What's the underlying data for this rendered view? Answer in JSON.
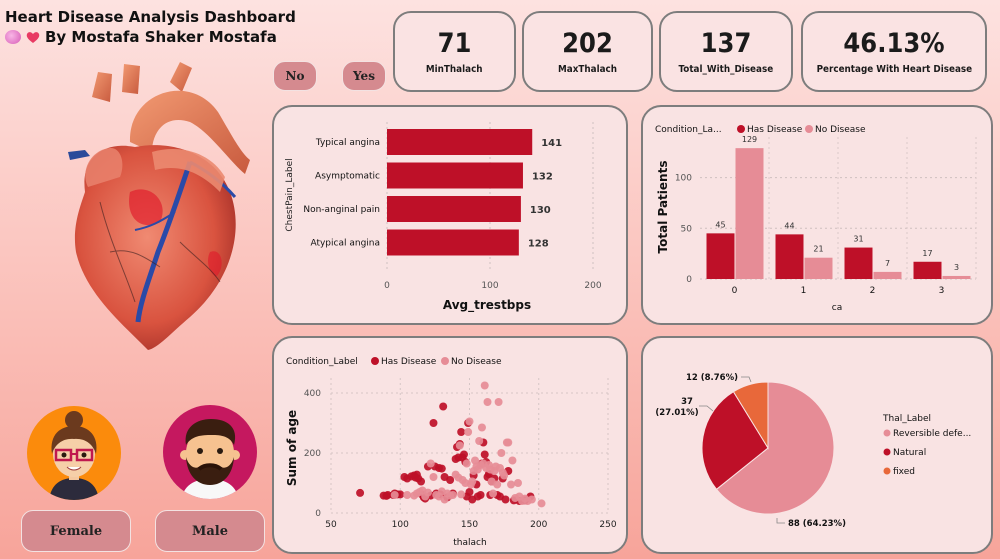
{
  "header": {
    "title": "Heart Disease Analysis Dashboard",
    "subtitle": "By Mostafa Shaker Mostafa",
    "icons": [
      "brain-emoji",
      "heart-emoji"
    ]
  },
  "filters": {
    "condition": {
      "no_label": "No",
      "yes_label": "Yes"
    },
    "sex": {
      "female_label": "Female",
      "male_label": "Male"
    }
  },
  "kpis": [
    {
      "value": "71",
      "label": "MinThalach"
    },
    {
      "value": "202",
      "label": "MaxThalach"
    },
    {
      "value": "137",
      "label": "Total_With_Disease"
    },
    {
      "value": "46.13%",
      "label": "Percentage With Heart Disease"
    }
  ],
  "colors": {
    "has_disease": "#be1028",
    "no_disease": "#e68c96",
    "fixed": "#e8683a",
    "panel_bg": "#f9e3e3",
    "button": "#d58a8f"
  },
  "chart_data": [
    {
      "id": "avg-trestbps-by-chestpain",
      "type": "bar",
      "orientation": "horizontal",
      "categories": [
        "Typical angina",
        "Asymptomatic",
        "Non-anginal pain",
        "Atypical angina"
      ],
      "values": [
        141,
        132,
        130,
        128
      ],
      "data_labels": [
        "141",
        "132",
        "130",
        "128"
      ],
      "title": "",
      "xlabel": "Avg_trestbps",
      "ylabel": "ChestPain_Label",
      "xlim": [
        0,
        200
      ],
      "xticks": [
        0,
        100,
        200
      ],
      "grid": true
    },
    {
      "id": "patients-by-ca",
      "type": "bar",
      "orientation": "vertical",
      "legend_title": "Condition_La...",
      "legend_position": "top-left",
      "categories": [
        "0",
        "1",
        "2",
        "3"
      ],
      "series": [
        {
          "name": "Has Disease",
          "values": [
            45,
            44,
            31,
            17
          ]
        },
        {
          "name": "No Disease",
          "values": [
            129,
            21,
            7,
            3
          ]
        }
      ],
      "xlabel": "ca",
      "ylabel": "Total Patients",
      "ylim": [
        0,
        140
      ],
      "yticks": [
        0,
        50,
        100
      ],
      "grid": true
    },
    {
      "id": "age-vs-thalach",
      "type": "scatter",
      "legend_title": "Condition_Label",
      "legend_position": "top-left",
      "xlabel": "thalach",
      "ylabel": "Sum of age",
      "xlim": [
        50,
        250
      ],
      "ylim": [
        0,
        450
      ],
      "xticks": [
        50,
        100,
        150,
        200,
        250
      ],
      "yticks": [
        0,
        200,
        400
      ],
      "grid": true,
      "series": [
        {
          "name": "Has Disease",
          "points": [
            [
              71,
              67
            ],
            [
              88,
              58
            ],
            [
              90,
              57
            ],
            [
              91,
              60
            ],
            [
              95,
              60
            ],
            [
              96,
              65
            ],
            [
              98,
              62
            ],
            [
              100,
              62
            ],
            [
              103,
              120
            ],
            [
              105,
              115
            ],
            [
              108,
              122
            ],
            [
              110,
              125
            ],
            [
              111,
              118
            ],
            [
              112,
              128
            ],
            [
              113,
              115
            ],
            [
              115,
              105
            ],
            [
              116,
              60
            ],
            [
              117,
              52
            ],
            [
              118,
              48
            ],
            [
              120,
              155
            ],
            [
              122,
              58
            ],
            [
              124,
              300
            ],
            [
              125,
              155
            ],
            [
              126,
              65
            ],
            [
              128,
              150
            ],
            [
              129,
              62
            ],
            [
              130,
              148
            ],
            [
              131,
              355
            ],
            [
              132,
              120
            ],
            [
              134,
              52
            ],
            [
              136,
              110
            ],
            [
              138,
              65
            ],
            [
              140,
              180
            ],
            [
              141,
              220
            ],
            [
              142,
              185
            ],
            [
              143,
              230
            ],
            [
              144,
              270
            ],
            [
              145,
              185
            ],
            [
              146,
              195
            ],
            [
              147,
              170
            ],
            [
              148,
              55
            ],
            [
              149,
              300
            ],
            [
              150,
              70
            ],
            [
              152,
              45
            ],
            [
              153,
              125
            ],
            [
              155,
              95
            ],
            [
              156,
              55
            ],
            [
              158,
              60
            ],
            [
              159,
              165
            ],
            [
              160,
              235
            ],
            [
              161,
              195
            ],
            [
              162,
              170
            ],
            [
              163,
              120
            ],
            [
              164,
              130
            ],
            [
              165,
              60
            ],
            [
              166,
              105
            ],
            [
              168,
              115
            ],
            [
              170,
              60
            ],
            [
              172,
              55
            ],
            [
              174,
              115
            ],
            [
              176,
              45
            ],
            [
              178,
              140
            ],
            [
              182,
              42
            ],
            [
              186,
              40
            ],
            [
              190,
              42
            ],
            [
              194,
              55
            ]
          ]
        },
        {
          "name": "No Disease",
          "points": [
            [
              96,
              60
            ],
            [
              105,
              60
            ],
            [
              110,
              58
            ],
            [
              112,
              65
            ],
            [
              114,
              70
            ],
            [
              116,
              75
            ],
            [
              118,
              55
            ],
            [
              120,
              68
            ],
            [
              122,
              165
            ],
            [
              124,
              120
            ],
            [
              126,
              60
            ],
            [
              128,
              55
            ],
            [
              130,
              72
            ],
            [
              132,
              45
            ],
            [
              134,
              65
            ],
            [
              136,
              58
            ],
            [
              138,
              60
            ],
            [
              140,
              128
            ],
            [
              142,
              118
            ],
            [
              143,
              225
            ],
            [
              144,
              62
            ],
            [
              145,
              110
            ],
            [
              147,
              100
            ],
            [
              148,
              165
            ],
            [
              149,
              270
            ],
            [
              150,
              305
            ],
            [
              151,
              95
            ],
            [
              152,
              105
            ],
            [
              153,
              140
            ],
            [
              154,
              175
            ],
            [
              155,
              155
            ],
            [
              156,
              145
            ],
            [
              157,
              240
            ],
            [
              158,
              160
            ],
            [
              159,
              285
            ],
            [
              160,
              165
            ],
            [
              161,
              425
            ],
            [
              162,
              150
            ],
            [
              163,
              370
            ],
            [
              164,
              160
            ],
            [
              165,
              145
            ],
            [
              166,
              105
            ],
            [
              167,
              65
            ],
            [
              168,
              140
            ],
            [
              169,
              155
            ],
            [
              170,
              95
            ],
            [
              171,
              370
            ],
            [
              172,
              150
            ],
            [
              173,
              200
            ],
            [
              174,
              135
            ],
            [
              175,
              125
            ],
            [
              177,
              235
            ],
            [
              178,
              235
            ],
            [
              180,
              95
            ],
            [
              181,
              175
            ],
            [
              183,
              50
            ],
            [
              185,
              100
            ],
            [
              186,
              55
            ],
            [
              188,
              40
            ],
            [
              190,
              48
            ],
            [
              192,
              40
            ],
            [
              195,
              45
            ],
            [
              202,
              32
            ]
          ]
        }
      ]
    },
    {
      "id": "thal-distribution",
      "type": "pie",
      "legend_title": "Thal_Label",
      "legend_position": "right",
      "slices": [
        {
          "label": "Reversible defe...",
          "value": 88,
          "percent": 64.23,
          "data_label": "88 (64.23%)"
        },
        {
          "label": "Natural",
          "value": 37,
          "percent": 27.01,
          "data_label": "37 (27.01%)"
        },
        {
          "label": "fixed",
          "value": 12,
          "percent": 8.76,
          "data_label": "12 (8.76%)"
        }
      ]
    }
  ]
}
